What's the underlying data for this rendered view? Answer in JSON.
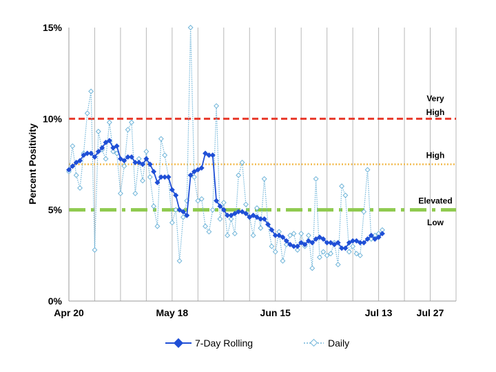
{
  "chart_data": {
    "type": "line",
    "title": "",
    "xlabel": "",
    "ylabel": "Percent Positivity",
    "ylim": [
      0,
      15
    ],
    "y_ticks": [
      "0%",
      "5%",
      "10%",
      "15%"
    ],
    "y_tick_values": [
      0,
      5,
      10,
      15
    ],
    "x_start": "2020-04-20",
    "x_end": "2020-08-03",
    "x_ticks": [
      "Apr 20",
      "May 18",
      "Jun 15",
      "Jul 13",
      "Jul 27"
    ],
    "x_tick_values": [
      "2020-04-20",
      "2020-05-18",
      "2020-06-15",
      "2020-07-13",
      "2020-07-27"
    ],
    "grid": "vertical, weekly",
    "legend_position": "bottom",
    "thresholds": [
      {
        "value": 10,
        "color": "#e8392b",
        "style": "dashed"
      },
      {
        "value": 7.5,
        "color": "#f2b94a",
        "style": "dotted"
      },
      {
        "value": 5,
        "color": "#8fca4f",
        "style": "dash-dot"
      }
    ],
    "annotations": [
      {
        "text": "Very",
        "y": 11.1
      },
      {
        "text": "High",
        "y": 10.35
      },
      {
        "text": "High",
        "y": 8.0
      },
      {
        "text": "Elevated",
        "y": 5.5
      },
      {
        "text": "Low",
        "y": 4.3
      }
    ],
    "series": [
      {
        "name": "7-Day Rolling",
        "color": "#1f4fd6",
        "start_date": "2020-04-20",
        "values": [
          7.2,
          7.4,
          7.6,
          7.7,
          8.0,
          8.1,
          8.1,
          7.9,
          8.2,
          8.4,
          8.7,
          8.8,
          8.4,
          8.5,
          7.8,
          7.7,
          7.9,
          7.9,
          7.6,
          7.6,
          7.5,
          7.8,
          7.5,
          7.1,
          6.5,
          6.8,
          6.8,
          6.8,
          6.1,
          5.8,
          5.0,
          4.9,
          4.7,
          6.9,
          7.1,
          7.2,
          7.3,
          8.1,
          8.0,
          8.0,
          5.5,
          5.2,
          5.0,
          4.7,
          4.7,
          4.8,
          4.9,
          4.9,
          4.8,
          4.6,
          4.7,
          4.6,
          4.5,
          4.5,
          4.2,
          3.9,
          3.6,
          3.6,
          3.5,
          3.3,
          3.1,
          3.0,
          3.0,
          3.2,
          3.1,
          3.3,
          3.2,
          3.4,
          3.5,
          3.4,
          3.2,
          3.2,
          3.1,
          3.2,
          2.9,
          2.9,
          3.2,
          3.3,
          3.3,
          3.2,
          3.2,
          3.4,
          3.6,
          3.4,
          3.5,
          3.7
        ]
      },
      {
        "name": "Daily",
        "color": "#6fb4d8",
        "start_date": "2020-04-20",
        "values": [
          7.1,
          8.5,
          6.9,
          6.2,
          8.1,
          10.3,
          11.5,
          2.8,
          9.3,
          8.3,
          7.8,
          9.8,
          8.2,
          8.1,
          5.9,
          7.4,
          9.4,
          9.8,
          5.9,
          7.8,
          6.6,
          8.2,
          6.8,
          5.2,
          4.1,
          8.9,
          8.0,
          6.8,
          4.3,
          5.0,
          2.2,
          4.6,
          5.5,
          15.0,
          6.8,
          5.5,
          5.6,
          4.1,
          3.8,
          5.0,
          10.7,
          4.5,
          5.4,
          3.6,
          4.5,
          3.7,
          6.9,
          7.6,
          5.3,
          4.6,
          3.6,
          5.1,
          4.0,
          6.7,
          4.2,
          3.0,
          2.7,
          3.8,
          2.2,
          3.1,
          3.6,
          3.7,
          2.8,
          3.7,
          3.0,
          3.6,
          1.8,
          6.7,
          2.4,
          2.7,
          2.5,
          2.6,
          3.2,
          2.0,
          6.3,
          5.8,
          2.7,
          3.0,
          2.6,
          2.5,
          4.9,
          7.2,
          3.4,
          3.6,
          3.7,
          3.9
        ]
      }
    ]
  }
}
